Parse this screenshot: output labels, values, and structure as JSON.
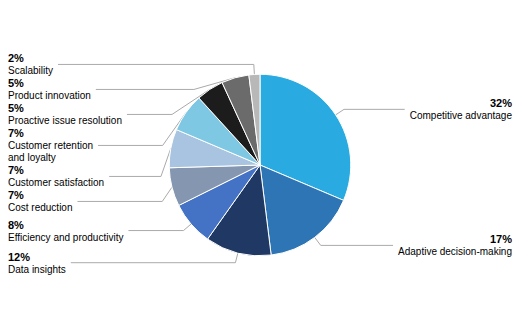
{
  "chart_data": {
    "type": "pie",
    "categories": [
      "Competitive advantage",
      "Adaptive decision-making",
      "Data insights",
      "Efficiency and productivity",
      "Cost reduction",
      "Customer satisfaction",
      "Customer retention\nand loyalty",
      "Proactive issue resolution",
      "Product innovation",
      "Scalability"
    ],
    "values": [
      32,
      17,
      12,
      8,
      7,
      7,
      7,
      5,
      5,
      2
    ],
    "value_labels": [
      "32%",
      "17%",
      "12%",
      "8%",
      "7%",
      "7%",
      "7%",
      "5%",
      "5%",
      "2%"
    ],
    "colors": [
      "#29ABE2",
      "#2E75B6",
      "#1F3864",
      "#4472C4",
      "#8496B0",
      "#A9C4E0",
      "#7EC8E3",
      "#1C1C1C",
      "#6B6B6B",
      "#B8B8B8"
    ],
    "data_labels": true
  }
}
